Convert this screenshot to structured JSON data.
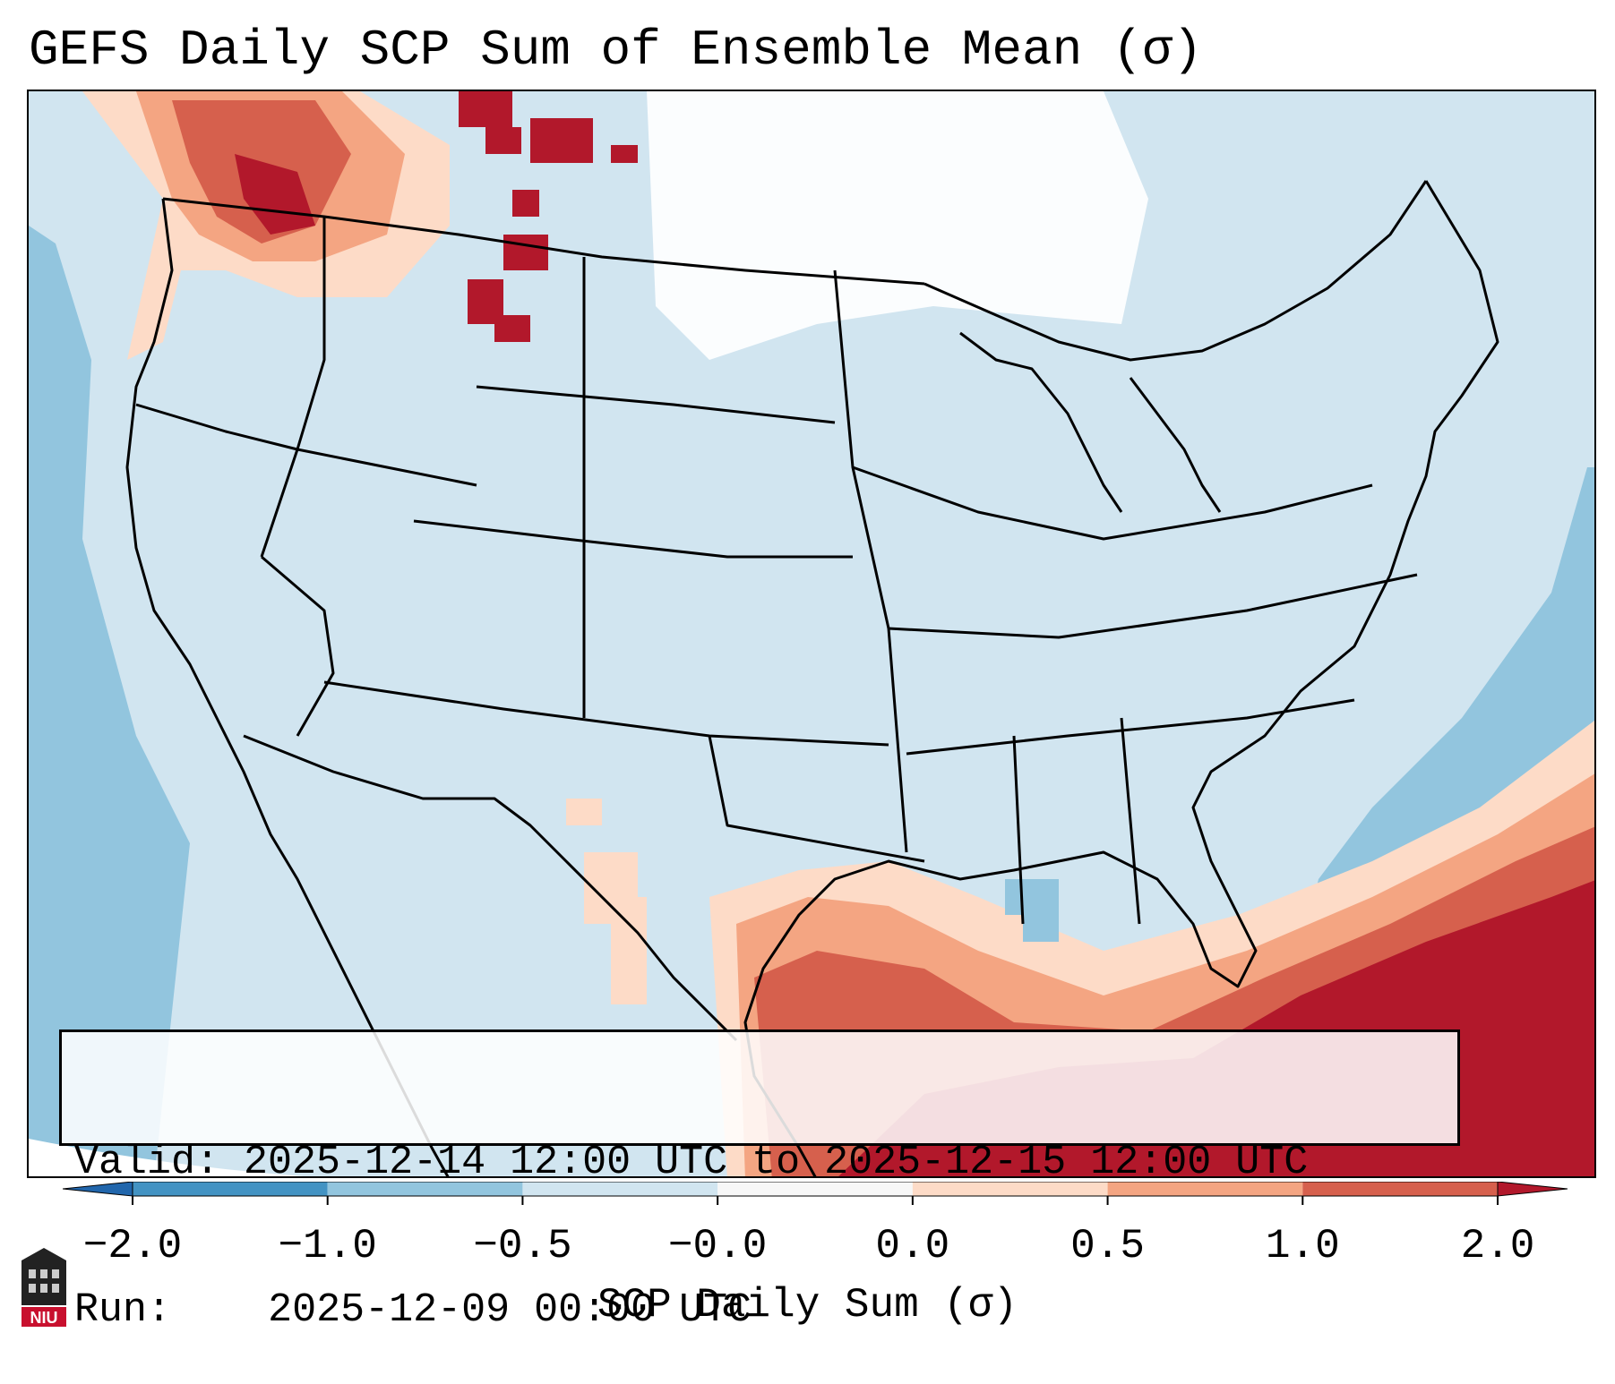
{
  "title": "GEFS Daily SCP Sum of Ensemble Mean (σ)",
  "map": {
    "region": "CONUS",
    "field": "SCP Daily Sum (σ)",
    "valid_label": "Valid:",
    "valid_value": "2025-12-14 12:00 UTC to 2025-12-15 12:00 UTC",
    "run_label": "Run:",
    "run_value": "2025-12-09 00:00 UTC",
    "background_category": "-0.5 to 0.0",
    "anomaly_areas": [
      {
        "name": "Pacific Northwest",
        "category": "0.5 to 2.0+"
      },
      {
        "name": "Northern Montana",
        "category": "1.0 to 2.0+"
      },
      {
        "name": "Gulf of Mexico / Florida / Caribbean",
        "category": "1.0 to 2.0+"
      },
      {
        "name": "Western Atlantic offshore",
        "category": "-1.0 to -0.5"
      },
      {
        "name": "Eastern Pacific offshore",
        "category": "-1.0 to -0.5"
      }
    ]
  },
  "colorbar": {
    "label": "SCP Daily Sum (σ)",
    "ticks": [
      "−2.0",
      "−1.0",
      "−0.5",
      "−0.0",
      "0.0",
      "0.5",
      "1.0",
      "2.0"
    ],
    "bins": [
      {
        "from": -2.0,
        "to": -1.0,
        "color": "#4393c3"
      },
      {
        "from": -1.0,
        "to": -0.5,
        "color": "#92c5de"
      },
      {
        "from": -0.5,
        "to": -0.0,
        "color": "#d1e5f0"
      },
      {
        "from": -0.0,
        "to": 0.0,
        "color": "#f7f7f7"
      },
      {
        "from": 0.0,
        "to": 0.5,
        "color": "#fddbc7"
      },
      {
        "from": 0.5,
        "to": 1.0,
        "color": "#f4a582"
      },
      {
        "from": 1.0,
        "to": 2.0,
        "color": "#d6604d"
      }
    ],
    "under_color": "#2166ac",
    "over_color": "#b2182b"
  },
  "logo": {
    "text": "NIU"
  }
}
